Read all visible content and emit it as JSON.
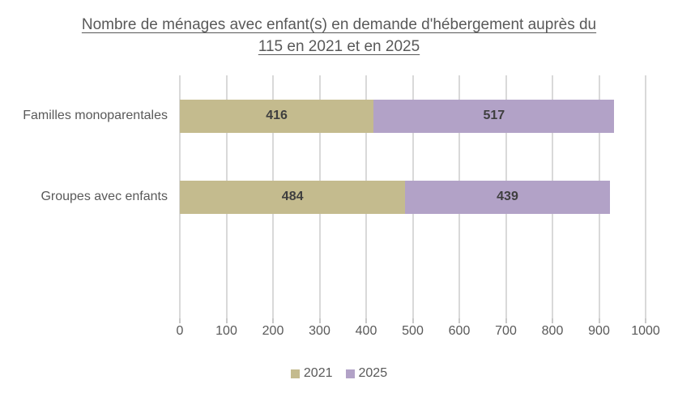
{
  "title": {
    "line1": "Nombre de ménages avec enfant(s) en demande d'hébergement auprès du",
    "line2": "115 en 2021 et en 2025"
  },
  "chart_data": {
    "type": "bar",
    "orientation": "horizontal",
    "stacked": true,
    "title": "Nombre de ménages avec enfant(s) en demande d'hébergement auprès du 115 en 2021 et en 2025",
    "categories": [
      "Familles monoparentales",
      "Groupes avec enfants"
    ],
    "series": [
      {
        "name": "2021",
        "color": "#C4BB8E",
        "values": [
          416,
          484
        ]
      },
      {
        "name": "2025",
        "color": "#B2A2C7",
        "values": [
          517,
          439
        ]
      }
    ],
    "xlim": [
      0,
      1000
    ],
    "xticks": [
      0,
      100,
      200,
      300,
      400,
      500,
      600,
      700,
      800,
      900,
      1000
    ],
    "grid": "vertical",
    "legend_position": "bottom"
  },
  "colors": {
    "background": "#FFFFFF",
    "grid": "#D9D9D9",
    "tick": "#C9C9C9",
    "text": "#595959",
    "data_label": "#3F3F3F"
  }
}
